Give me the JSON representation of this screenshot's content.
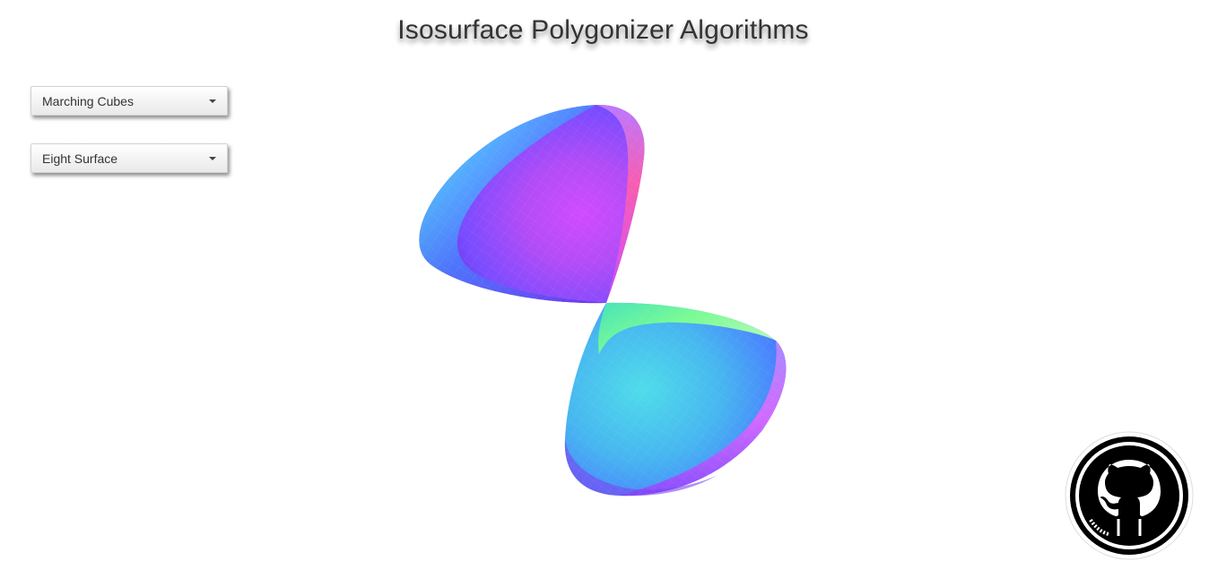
{
  "page": {
    "title": "Isosurface Polygonizer Algorithms"
  },
  "controls": {
    "algorithm": {
      "selected": "Marching Cubes"
    },
    "surface": {
      "selected": "Eight Surface"
    }
  },
  "icons": {
    "dropdown_caret": "caret-down-icon",
    "github": "github-octocat-icon"
  },
  "colors": {
    "title_text": "#333333",
    "surface_normal_palette": [
      "#7fff9a",
      "#4fd9e0",
      "#4a6bff",
      "#a54dff",
      "#ff5fa8"
    ]
  }
}
